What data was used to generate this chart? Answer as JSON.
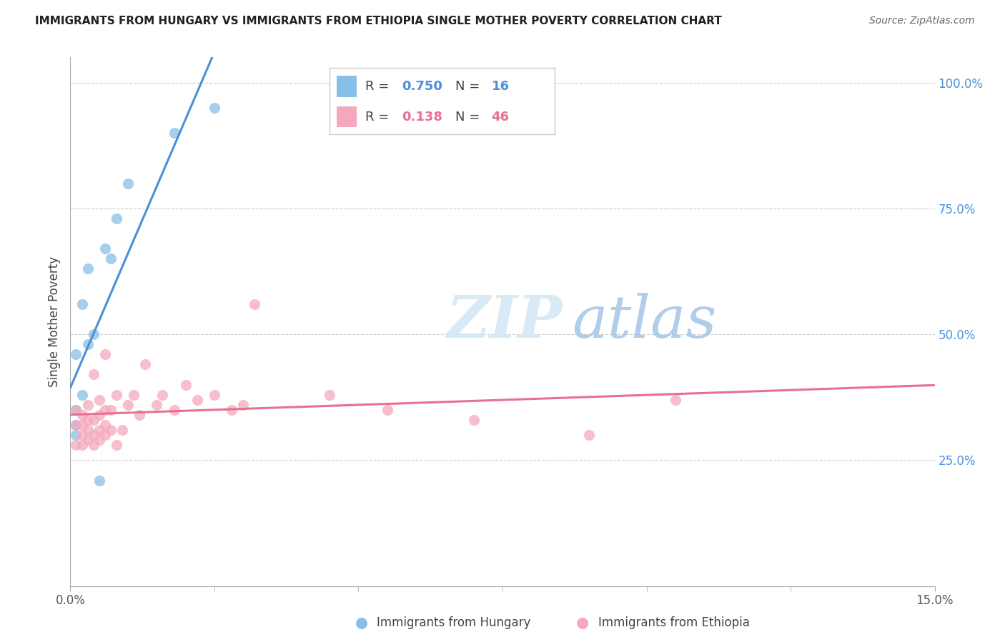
{
  "title": "IMMIGRANTS FROM HUNGARY VS IMMIGRANTS FROM ETHIOPIA SINGLE MOTHER POVERTY CORRELATION CHART",
  "source": "Source: ZipAtlas.com",
  "ylabel": "Single Mother Poverty",
  "xlim": [
    0.0,
    0.15
  ],
  "ylim": [
    0.0,
    1.05
  ],
  "x_tick_positions": [
    0.0,
    0.15
  ],
  "x_tick_labels": [
    "0.0%",
    "15.0%"
  ],
  "y_ticks_right": [
    0.0,
    0.25,
    0.5,
    0.75,
    1.0
  ],
  "y_tick_labels_right": [
    "",
    "25.0%",
    "50.0%",
    "75.0%",
    "100.0%"
  ],
  "legend_hungary_R": "0.750",
  "legend_hungary_N": "16",
  "legend_ethiopia_R": "0.138",
  "legend_ethiopia_N": "46",
  "hungary_color": "#88bfe8",
  "ethiopia_color": "#f5a8bc",
  "hungary_line_color": "#4a90d9",
  "ethiopia_line_color": "#e87090",
  "hungary_x": [
    0.001,
    0.001,
    0.001,
    0.001,
    0.002,
    0.002,
    0.003,
    0.003,
    0.004,
    0.005,
    0.006,
    0.007,
    0.008,
    0.01,
    0.018,
    0.025
  ],
  "hungary_y": [
    0.3,
    0.32,
    0.35,
    0.46,
    0.38,
    0.56,
    0.48,
    0.63,
    0.5,
    0.21,
    0.67,
    0.65,
    0.73,
    0.8,
    0.9,
    0.95
  ],
  "ethiopia_x": [
    0.001,
    0.001,
    0.001,
    0.002,
    0.002,
    0.002,
    0.002,
    0.003,
    0.003,
    0.003,
    0.003,
    0.004,
    0.004,
    0.004,
    0.004,
    0.005,
    0.005,
    0.005,
    0.005,
    0.006,
    0.006,
    0.006,
    0.006,
    0.007,
    0.007,
    0.008,
    0.008,
    0.009,
    0.01,
    0.011,
    0.012,
    0.013,
    0.015,
    0.016,
    0.018,
    0.02,
    0.022,
    0.025,
    0.028,
    0.03,
    0.032,
    0.045,
    0.055,
    0.07,
    0.09,
    0.105
  ],
  "ethiopia_y": [
    0.28,
    0.32,
    0.35,
    0.28,
    0.3,
    0.32,
    0.34,
    0.29,
    0.31,
    0.33,
    0.36,
    0.28,
    0.3,
    0.33,
    0.42,
    0.29,
    0.31,
    0.34,
    0.37,
    0.3,
    0.32,
    0.35,
    0.46,
    0.31,
    0.35,
    0.28,
    0.38,
    0.31,
    0.36,
    0.38,
    0.34,
    0.44,
    0.36,
    0.38,
    0.35,
    0.4,
    0.37,
    0.38,
    0.35,
    0.36,
    0.56,
    0.38,
    0.35,
    0.33,
    0.3,
    0.37
  ],
  "background_color": "#ffffff",
  "grid_color": "#cccccc",
  "watermark_color": "#d4e8f5"
}
